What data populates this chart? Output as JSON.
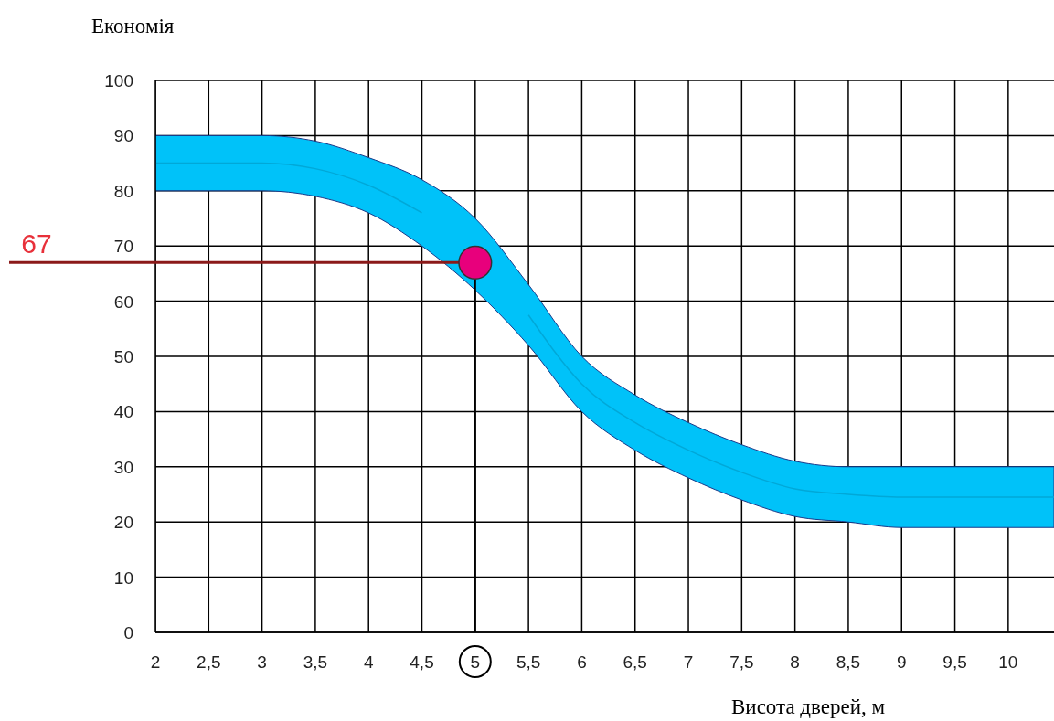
{
  "chart_data": {
    "type": "area",
    "xlabel": "Висота дверей, м",
    "ylabel": "Економія",
    "xlim": [
      2,
      10.43
    ],
    "ylim": [
      0,
      100
    ],
    "xticks": [
      2,
      {
        "value": 2.5,
        "label": "2,5"
      },
      3,
      {
        "value": 3.5,
        "label": "3,5"
      },
      4,
      {
        "value": 4.5,
        "label": "4,5"
      },
      5,
      {
        "value": 5.5,
        "label": "5,5"
      },
      6,
      {
        "value": 6.5,
        "label": "6,5"
      },
      7,
      {
        "value": 7.5,
        "label": "7,5"
      },
      8,
      {
        "value": 8.5,
        "label": "8,5"
      },
      9,
      {
        "value": 9.5,
        "label": "9,5"
      },
      10
    ],
    "yticks": [
      0,
      10,
      20,
      30,
      40,
      50,
      60,
      70,
      80,
      90,
      100
    ],
    "grid": true,
    "series": [
      {
        "type": "line",
        "color": "#00a8d8",
        "x": [
          2,
          2.5,
          3,
          3.5,
          4,
          4.5,
          5,
          5.5,
          6,
          6.5,
          7,
          7.5,
          8,
          8.5,
          9,
          9.5,
          10,
          10.43
        ],
        "values": [
          85,
          85,
          85,
          84,
          81,
          76,
          null,
          57.5,
          45,
          38,
          33,
          29,
          26,
          25,
          24.5,
          24.5,
          24.5,
          24.5
        ],
        "lower": [
          80,
          80,
          80,
          79,
          76,
          70,
          62,
          52,
          40,
          33,
          28,
          24,
          21,
          20,
          19,
          19,
          19,
          19
        ],
        "upper": [
          90,
          90,
          90,
          89,
          86,
          82,
          75,
          63,
          50,
          43,
          38,
          34,
          31,
          30,
          30,
          30,
          30,
          30
        ]
      },
      {
        "type": "scatter",
        "color": "#e8007c",
        "marker": "circle",
        "x": [
          5
        ],
        "values": [
          67
        ]
      }
    ],
    "ref_lines": [
      {
        "axis": "y",
        "value": 67,
        "label": "67",
        "color": "#8b1a1a"
      },
      {
        "axis": "x",
        "value": 5,
        "color": "#000000"
      }
    ]
  }
}
